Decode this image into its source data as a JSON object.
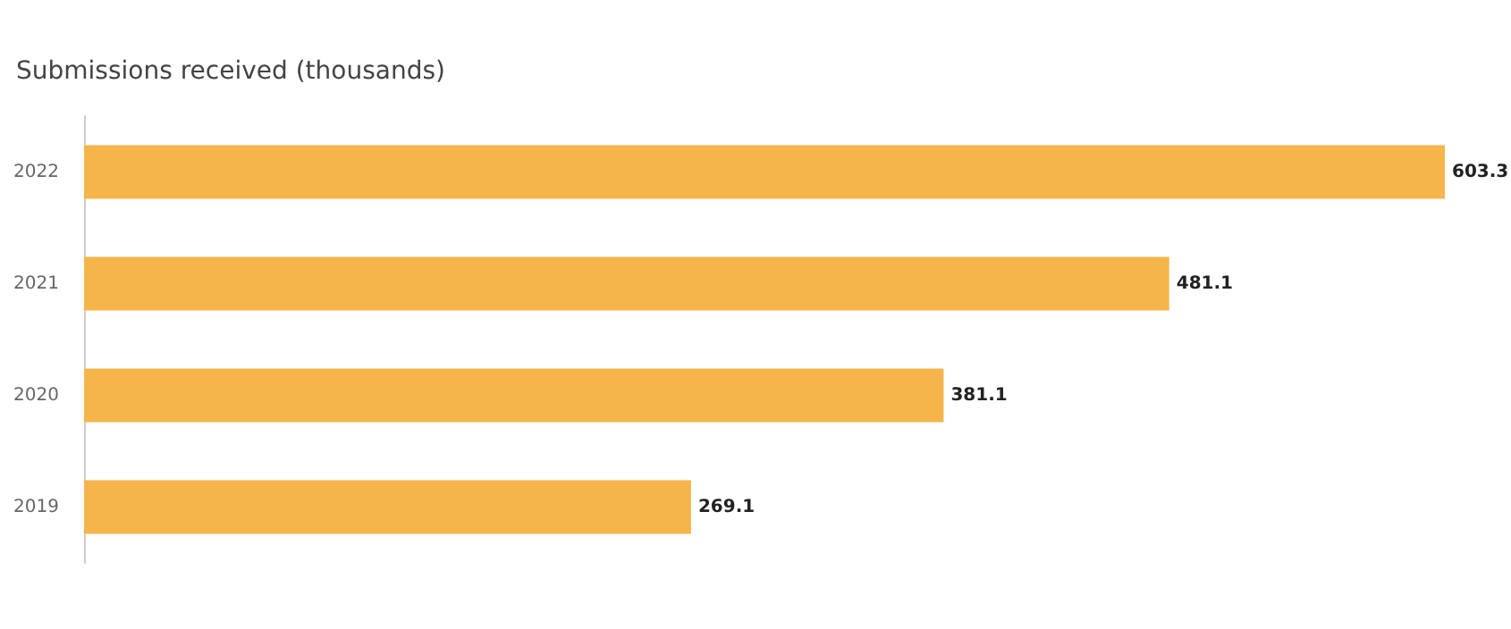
{
  "chart_data": {
    "type": "bar",
    "orientation": "horizontal",
    "title": "Submissions received (thousands)",
    "categories": [
      "2022",
      "2021",
      "2020",
      "2019"
    ],
    "values": [
      603.3,
      481.1,
      381.1,
      269.1
    ],
    "color": "#f5b54b",
    "data_labels": true
  }
}
